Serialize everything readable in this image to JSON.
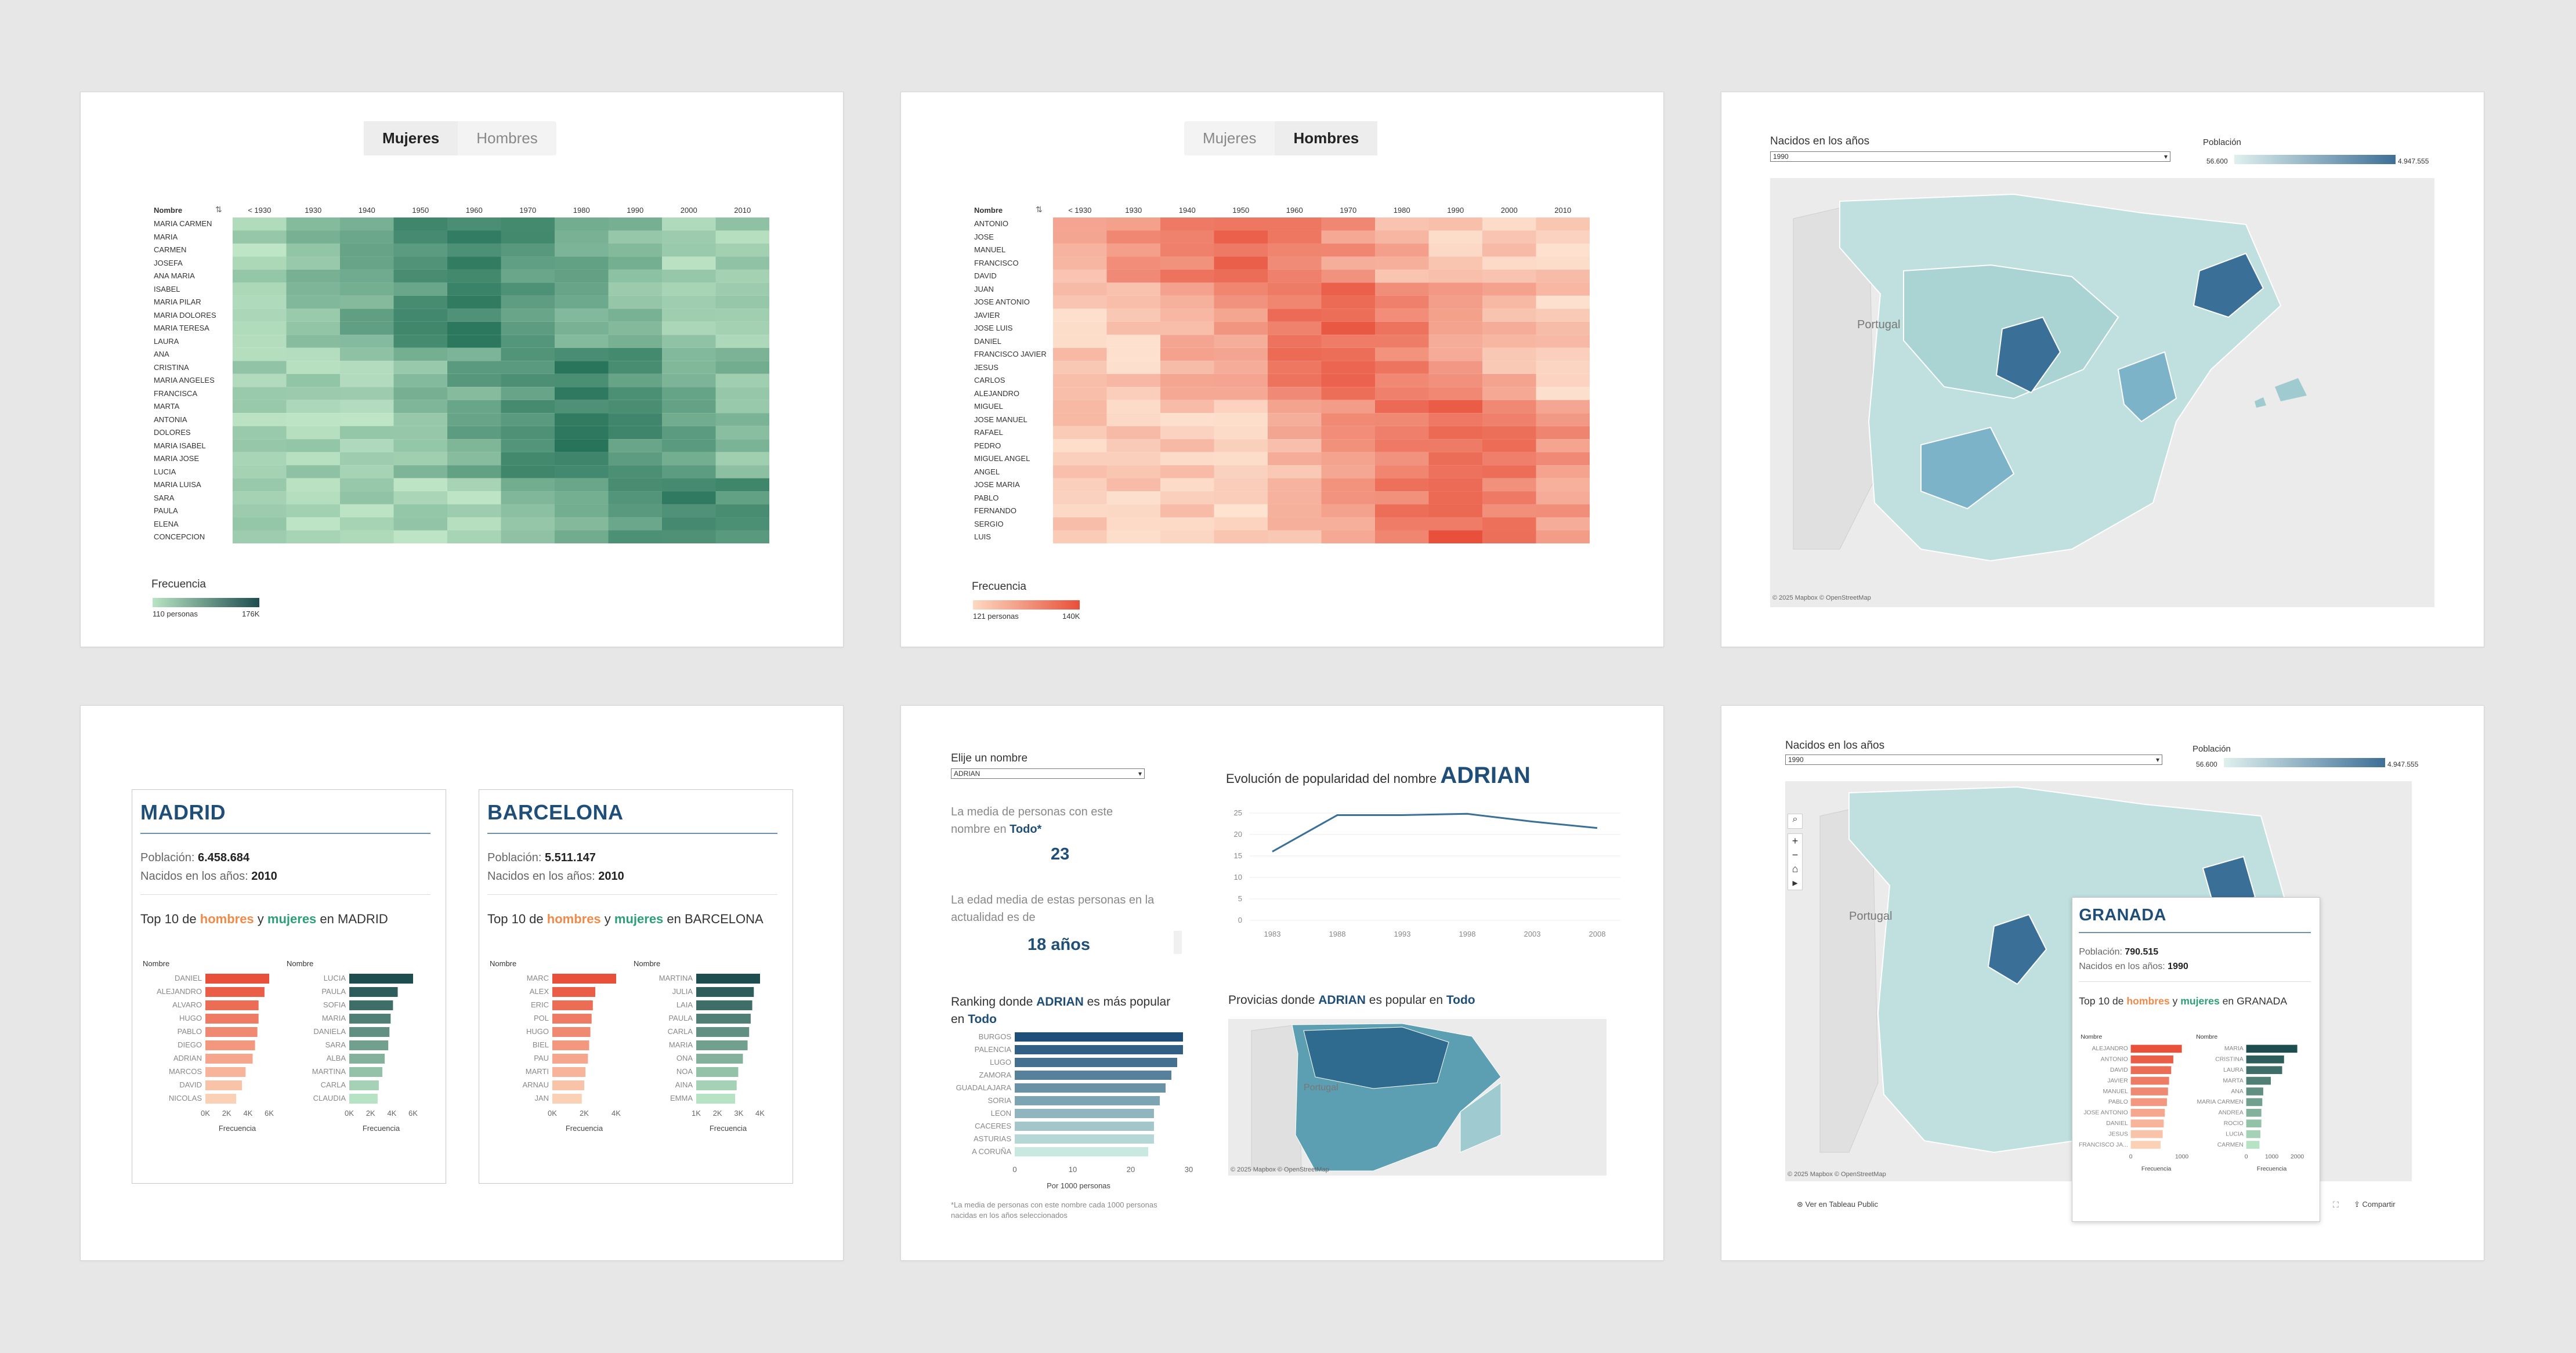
{
  "panel1": {
    "toggle": [
      "Mujeres",
      "Hombres"
    ],
    "active": 0,
    "header_name": "Nombre",
    "years": [
      "< 1930",
      "1930",
      "1940",
      "1950",
      "1960",
      "1970",
      "1980",
      "1990",
      "2000",
      "2010"
    ],
    "names": [
      "MARIA CARMEN",
      "MARIA",
      "CARMEN",
      "JOSEFA",
      "ANA MARIA",
      "ISABEL",
      "MARIA PILAR",
      "MARIA DOLORES",
      "MARIA TERESA",
      "LAURA",
      "ANA",
      "CRISTINA",
      "MARIA ANGELES",
      "FRANCISCA",
      "MARTA",
      "ANTONIA",
      "DOLORES",
      "MARIA ISABEL",
      "MARIA JOSE",
      "LUCIA",
      "MARIA LUISA",
      "SARA",
      "PAULA",
      "ELENA",
      "CONCEPCION"
    ],
    "legend_title": "Frecuencia",
    "legend_min": "110 personas",
    "legend_max": "176K",
    "color": "#2e8b62"
  },
  "panel2": {
    "toggle": [
      "Mujeres",
      "Hombres"
    ],
    "active": 1,
    "header_name": "Nombre",
    "years": [
      "< 1930",
      "1930",
      "1940",
      "1950",
      "1960",
      "1970",
      "1980",
      "1990",
      "2000",
      "2010"
    ],
    "names": [
      "ANTONIO",
      "JOSE",
      "MANUEL",
      "FRANCISCO",
      "DAVID",
      "JUAN",
      "JOSE ANTONIO",
      "JAVIER",
      "JOSE LUIS",
      "DANIEL",
      "FRANCISCO JAVIER",
      "JESUS",
      "CARLOS",
      "ALEJANDRO",
      "MIGUEL",
      "JOSE MANUEL",
      "RAFAEL",
      "PEDRO",
      "MIGUEL ANGEL",
      "ANGEL",
      "JOSE MARIA",
      "PABLO",
      "FERNANDO",
      "SERGIO",
      "LUIS"
    ],
    "legend_title": "Frecuencia",
    "legend_min": "121 personas",
    "legend_max": "140K",
    "color": "#e8503a"
  },
  "panel3": {
    "dd_label": "Nacidos en los años",
    "dd_value": "1990",
    "legend_title": "Población",
    "legend_min": "56.600",
    "legend_max": "4.947.555",
    "portugal": "Portugal",
    "credit": "© 2025 Mapbox  © OpenStreetMap"
  },
  "panel4": {
    "cities": [
      {
        "name": "MADRID",
        "poblacion_lbl": "Población:",
        "poblacion": "6.458.684",
        "nacidos_lbl": "Nacidos en los años:",
        "nacidos": "2010",
        "top_pre": "Top 10 de ",
        "hombres": "hombres",
        "y": " y ",
        "mujeres": "mujeres",
        "top_post": " en MADRID",
        "male": [
          "DANIEL",
          "ALEJANDRO",
          "ALVARO",
          "HUGO",
          "PABLO",
          "DIEGO",
          "ADRIAN",
          "MARCOS",
          "DAVID",
          "NICOLAS"
        ],
        "male_v": [
          5400,
          5000,
          4500,
          4500,
          4400,
          4200,
          4000,
          3400,
          3100,
          2600
        ],
        "female": [
          "LUCIA",
          "PAULA",
          "SOFIA",
          "MARIA",
          "DANIELA",
          "SARA",
          "ALBA",
          "MARTINA",
          "CARLA",
          "CLAUDIA"
        ],
        "female_v": [
          5400,
          4100,
          3700,
          3500,
          3400,
          3300,
          3000,
          2800,
          2500,
          2400
        ],
        "m_ticks": [
          "0K",
          "2K",
          "4K",
          "6K"
        ],
        "f_ticks": [
          "0K",
          "2K",
          "4K",
          "6K"
        ],
        "axis": "Frecuencia",
        "hdr": "Nombre"
      },
      {
        "name": "BARCELONA",
        "poblacion_lbl": "Población:",
        "poblacion": "5.511.147",
        "nacidos_lbl": "Nacidos en los años:",
        "nacidos": "2010",
        "top_pre": "Top 10 de ",
        "hombres": "hombres",
        "y": " y ",
        "mujeres": "mujeres",
        "top_post": " en BARCELONA",
        "male": [
          "MARC",
          "ALEX",
          "ERIC",
          "POL",
          "HUGO",
          "BIEL",
          "PAU",
          "MARTI",
          "ARNAU",
          "JAN"
        ],
        "male_v": [
          5200,
          3500,
          3300,
          3200,
          3100,
          3000,
          2900,
          2700,
          2600,
          2400
        ],
        "female": [
          "MARTINA",
          "JULIA",
          "LAIA",
          "PAULA",
          "CARLA",
          "MARIA",
          "ONA",
          "NOA",
          "AINA",
          "EMMA"
        ],
        "female_v": [
          4100,
          3700,
          3600,
          3500,
          3400,
          3300,
          3000,
          2700,
          2600,
          2500
        ],
        "m_ticks": [
          "0K",
          "2K",
          "4K"
        ],
        "f_ticks": [
          "1K",
          "2K",
          "3K",
          "4K"
        ],
        "axis": "Frecuencia",
        "hdr": "Nombre"
      }
    ]
  },
  "panel5": {
    "elige_lbl": "Elije un nombre",
    "elige_val": "ADRIAN",
    "media_txt1": "La media de personas con este",
    "media_txt2": "nombre en ",
    "media_bold": "Todo*",
    "media_val": "23",
    "edad_txt1": "La edad media de estas personas en la",
    "edad_txt2": "actualidad es de",
    "edad_val": "18 años",
    "evol_pre": "Evolución de popularidad del nombre ",
    "evol_name": "ADRIAN",
    "ranking_pre": "Ranking donde ",
    "ranking_name": "ADRIAN",
    "ranking_post": " es más popular",
    "ranking_en": "en ",
    "ranking_todo": "Todo",
    "provincias": [
      "BURGOS",
      "PALENCIA",
      "LUGO",
      "ZAMORA",
      "GUADALAJARA",
      "SORIA",
      "LEON",
      "CACERES",
      "ASTURIAS",
      "A CORUÑA"
    ],
    "provincias_v": [
      29,
      29,
      28,
      27,
      26,
      25,
      24,
      24,
      24,
      23
    ],
    "rank_ticks": [
      "0",
      "10",
      "20",
      "30"
    ],
    "rank_axis": "Por 1000 personas",
    "provmap_pre": "Provicias donde ",
    "provmap_name": "ADRIAN",
    "provmap_mid": " es popular en ",
    "provmap_todo": "Todo",
    "footnote1": "*La media de personas con este nombre cada 1000 personas",
    "footnote2": "nacidas en los años seleccionados",
    "credit": "© 2025 Mapbox  © OpenStreetMap",
    "portugal": "Portugal",
    "chart_data": {
      "type": "line",
      "x": [
        "1983",
        "1988",
        "1993",
        "1998",
        "2003",
        "2008"
      ],
      "series": [
        {
          "values": [
            16,
            24.5,
            24.5,
            24.8,
            23,
            21.5
          ]
        }
      ],
      "yticks": [
        "0",
        "5",
        "10",
        "15",
        "20",
        "25"
      ],
      "ylim": [
        0,
        27
      ]
    }
  },
  "panel6": {
    "dd_label": "Nacidos en los años",
    "dd_value": "1990",
    "legend_title": "Población",
    "legend_min": "56.600",
    "legend_max": "4.947.555",
    "portugal": "Portugal",
    "credit": "© 2025 Mapbox  © OpenStreetMap",
    "tooltip": {
      "name": "GRANADA",
      "poblacion_lbl": "Población:",
      "poblacion": "790.515",
      "nacidos_lbl": "Nacidos en los años:",
      "nacidos": "1990",
      "top_pre": "Top 10 de ",
      "hombres": "hombres",
      "y": " y ",
      "mujeres": "mujeres",
      "top_post": " en GRANADA",
      "male": [
        "ALEJANDRO",
        "ANTONIO",
        "DAVID",
        "JAVIER",
        "MANUEL",
        "PABLO",
        "JOSE ANTONIO",
        "DANIEL",
        "JESUS",
        "FRANCISCO JA..."
      ],
      "male_v": [
        2400,
        2000,
        1900,
        1800,
        1750,
        1700,
        1600,
        1550,
        1500,
        1400
      ],
      "female": [
        "MARIA",
        "CRISTINA",
        "LAURA",
        "MARTA",
        "ANA",
        "MARIA CARMEN",
        "ANDREA",
        "ROCIO",
        "LUCIA",
        "CARMEN"
      ],
      "female_v": [
        2700,
        2000,
        1900,
        1300,
        900,
        850,
        800,
        800,
        750,
        700
      ],
      "m_ticks": [
        "0",
        "1000"
      ],
      "f_ticks": [
        "0",
        "1000",
        "2000"
      ],
      "axis": "Frecuencia",
      "hdr": "Nombre"
    },
    "footer_left": "Ver en Tableau Public",
    "footer_right": "Compartir"
  }
}
